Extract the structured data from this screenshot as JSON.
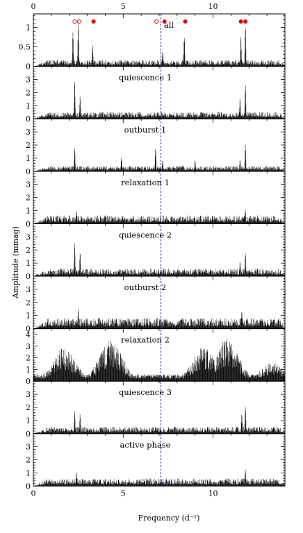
{
  "chart_data": {
    "type": "line",
    "xlabel": "Frequency (d⁻¹)",
    "ylabel": "Amplitude (mmag)",
    "xlim": [
      0,
      14
    ],
    "x_ticks": [
      "0",
      "5",
      "10"
    ],
    "x_tick_values": [
      0,
      5,
      10
    ],
    "x_minor_step": 1,
    "reference_line": {
      "x": 7.1,
      "style": "dashed",
      "color": "#2b2bb8"
    },
    "line_color": "#000000",
    "marker_color": "#e60000",
    "panels": [
      {
        "name": "all",
        "ylim": [
          0,
          1.35
        ],
        "y_ticks": [
          0,
          0.5,
          1
        ],
        "y_tick_labels": [
          "0",
          "0.5",
          "1"
        ],
        "noise_level": 0.14,
        "trend": "flat",
        "peaks": [
          {
            "x": 2.2,
            "y": 0.95
          },
          {
            "x": 2.5,
            "y": 1.15
          },
          {
            "x": 3.3,
            "y": 0.55
          },
          {
            "x": 7.2,
            "y": 0.42
          },
          {
            "x": 8.4,
            "y": 0.85
          },
          {
            "x": 11.55,
            "y": 0.8
          },
          {
            "x": 11.8,
            "y": 1.15
          }
        ],
        "markers": [
          {
            "x": 2.3,
            "filled": false
          },
          {
            "x": 2.55,
            "filled": false
          },
          {
            "x": 3.35,
            "filled": true
          },
          {
            "x": 6.85,
            "filled": false
          },
          {
            "x": 7.3,
            "filled": true
          },
          {
            "x": 8.45,
            "filled": true
          },
          {
            "x": 11.55,
            "filled": true
          },
          {
            "x": 11.8,
            "filled": true
          }
        ]
      },
      {
        "name": "quiescence 1",
        "ylim": [
          0,
          4
        ],
        "y_ticks": [
          0,
          1,
          2,
          3
        ],
        "y_tick_labels": [
          "0",
          "1",
          "2",
          "3"
        ],
        "noise_level": 0.45,
        "trend": "flat",
        "peaks": [
          {
            "x": 2.3,
            "y": 2.9
          },
          {
            "x": 2.6,
            "y": 1.8
          },
          {
            "x": 11.5,
            "y": 1.7
          },
          {
            "x": 11.8,
            "y": 2.8
          }
        ]
      },
      {
        "name": "outburst 1",
        "ylim": [
          0,
          4
        ],
        "y_ticks": [
          0,
          1,
          2,
          3
        ],
        "y_tick_labels": [
          "0",
          "1",
          "2",
          "3"
        ],
        "noise_level": 0.35,
        "trend": "flat",
        "peaks": [
          {
            "x": 2.3,
            "y": 2.0
          },
          {
            "x": 4.9,
            "y": 1.1
          },
          {
            "x": 6.8,
            "y": 1.8
          },
          {
            "x": 7.2,
            "y": 0.9
          },
          {
            "x": 9.0,
            "y": 0.9
          },
          {
            "x": 11.5,
            "y": 1.0
          },
          {
            "x": 11.8,
            "y": 2.2
          }
        ]
      },
      {
        "name": "relaxation 1",
        "ylim": [
          0,
          4
        ],
        "y_ticks": [
          0,
          1,
          2,
          3
        ],
        "y_tick_labels": [
          "0",
          "1",
          "2",
          "3"
        ],
        "noise_level": 0.55,
        "trend": "flat",
        "peaks": [
          {
            "x": 2.4,
            "y": 1.1
          },
          {
            "x": 11.8,
            "y": 1.2
          }
        ]
      },
      {
        "name": "quiescence 2",
        "ylim": [
          0,
          4
        ],
        "y_ticks": [
          0,
          1,
          2,
          3
        ],
        "y_tick_labels": [
          "0",
          "1",
          "2",
          "3"
        ],
        "noise_level": 0.5,
        "trend": "flat",
        "peaks": [
          {
            "x": 2.3,
            "y": 2.6
          },
          {
            "x": 2.6,
            "y": 1.9
          },
          {
            "x": 11.5,
            "y": 1.2
          },
          {
            "x": 11.8,
            "y": 1.9
          }
        ]
      },
      {
        "name": "outburst 2",
        "ylim": [
          0,
          4
        ],
        "y_ticks": [
          0,
          1,
          2,
          3
        ],
        "y_tick_labels": [
          "0",
          "1",
          "2",
          "3"
        ],
        "noise_level": 0.7,
        "trend": "flat",
        "peaks": [
          {
            "x": 2.5,
            "y": 1.6
          },
          {
            "x": 11.6,
            "y": 1.5
          }
        ]
      },
      {
        "name": "relaxation 2",
        "ylim": [
          0,
          4.5
        ],
        "y_ticks": [
          0,
          1,
          2,
          3,
          4
        ],
        "y_tick_labels": [
          "0",
          "1",
          "2",
          "3",
          "4"
        ],
        "noise_level": 1.0,
        "trend": "humps",
        "humps": [
          {
            "x": 1.7,
            "y": 2.6
          },
          {
            "x": 4.3,
            "y": 3.3
          },
          {
            "x": 9.5,
            "y": 2.7
          },
          {
            "x": 10.8,
            "y": 3.3
          },
          {
            "x": 13.3,
            "y": 1.5
          }
        ],
        "peaks": []
      },
      {
        "name": "quiescence 3",
        "ylim": [
          0,
          4
        ],
        "y_ticks": [
          0,
          1,
          2,
          3
        ],
        "y_tick_labels": [
          "0",
          "1",
          "2",
          "3"
        ],
        "noise_level": 0.45,
        "trend": "flat",
        "peaks": [
          {
            "x": 2.3,
            "y": 1.8
          },
          {
            "x": 2.6,
            "y": 1.5
          },
          {
            "x": 11.6,
            "y": 1.6
          },
          {
            "x": 11.8,
            "y": 2.3
          }
        ]
      },
      {
        "name": "active phase",
        "ylim": [
          0,
          4
        ],
        "y_ticks": [
          0,
          1,
          2,
          3
        ],
        "y_tick_labels": [
          "0",
          "1",
          "2",
          "3"
        ],
        "noise_level": 0.5,
        "trend": "flat",
        "peaks": [
          {
            "x": 2.4,
            "y": 1.1
          },
          {
            "x": 11.8,
            "y": 1.3
          }
        ]
      }
    ]
  }
}
